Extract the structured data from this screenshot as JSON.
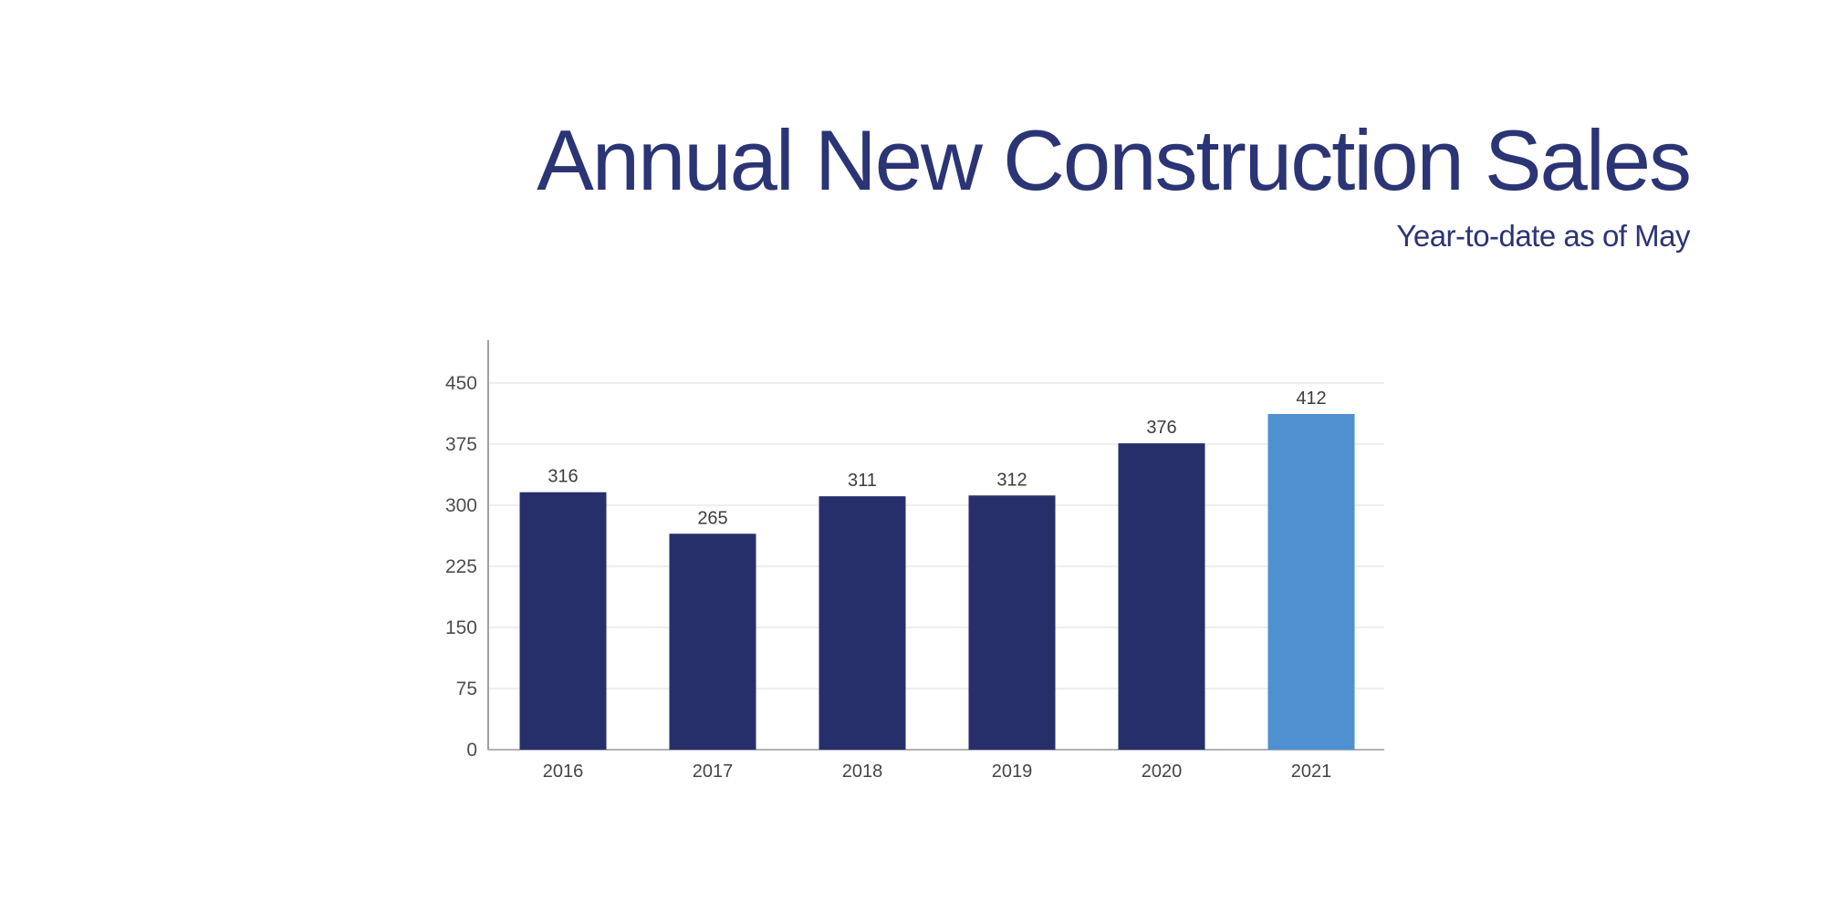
{
  "slide": {
    "background": "#ffffff"
  },
  "header": {
    "title": "Annual New Construction Sales",
    "subtitle": "Year-to-date as of May",
    "title_color": "#2b3474",
    "subtitle_color": "#2b3474"
  },
  "chart_data": {
    "type": "bar",
    "title": "Annual New Construction Sales",
    "subtitle": "Year-to-date as of May",
    "categories": [
      "2016",
      "2017",
      "2018",
      "2019",
      "2020",
      "2021"
    ],
    "values": [
      316,
      265,
      311,
      312,
      376,
      412
    ],
    "data_labels_shown": true,
    "xlabel": "",
    "ylabel": "",
    "ylim": [
      0,
      450
    ],
    "yticks": [
      0,
      75,
      150,
      225,
      300,
      375,
      450
    ],
    "grid": true,
    "legend_position": "none",
    "highlight_index": 5,
    "colors": {
      "bar": "#272f6b",
      "highlight_bar": "#4f90d1",
      "grid": "#e8e9ee",
      "baseline": "#b2b2b7",
      "axis": "#9fa0a6",
      "tick_label": "#4d4d4d",
      "value_label": "#3d3d3d",
      "category_label": "#454545"
    }
  }
}
